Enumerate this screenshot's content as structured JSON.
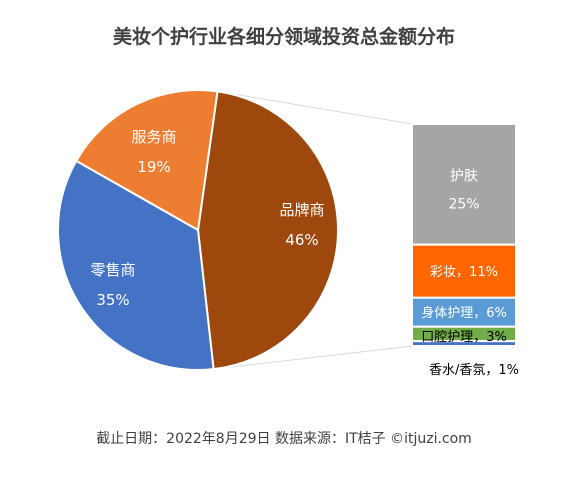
{
  "chart_data": {
    "type": "pie",
    "title": "美妆个护行业各细分领域投资总金额分布",
    "series": [
      {
        "name": "品牌商",
        "label": "品牌商",
        "pct": "46%",
        "value": 46,
        "color": "#9E480E"
      },
      {
        "name": "零售商",
        "label": "零售商",
        "pct": "35%",
        "value": 35,
        "color": "#4472C4"
      },
      {
        "name": "服务商",
        "label": "服务商",
        "pct": "19%",
        "value": 19,
        "color": "#ED7D31"
      }
    ],
    "breakdown": {
      "parent": "品牌商",
      "items": [
        {
          "name": "护肤",
          "label": "护肤",
          "pct": "25%",
          "value": 25,
          "color": "#A5A5A5"
        },
        {
          "name": "彩妆",
          "label": "彩妆，11%",
          "value": 11,
          "color": "#FF6600"
        },
        {
          "name": "身体护理",
          "label": "身体护理，6%",
          "value": 6,
          "color": "#5B9BD5"
        },
        {
          "name": "口腔护理",
          "label": "口腔护理，3%",
          "value": 3,
          "color": "#70AD47"
        },
        {
          "name": "香水/香氛",
          "label": "香水/香氛，1%",
          "value": 1,
          "color": "#4472C4"
        }
      ]
    }
  },
  "footer": "截止日期：2022年8月29日 数据来源：IT桔子 ©itjuzi.com"
}
